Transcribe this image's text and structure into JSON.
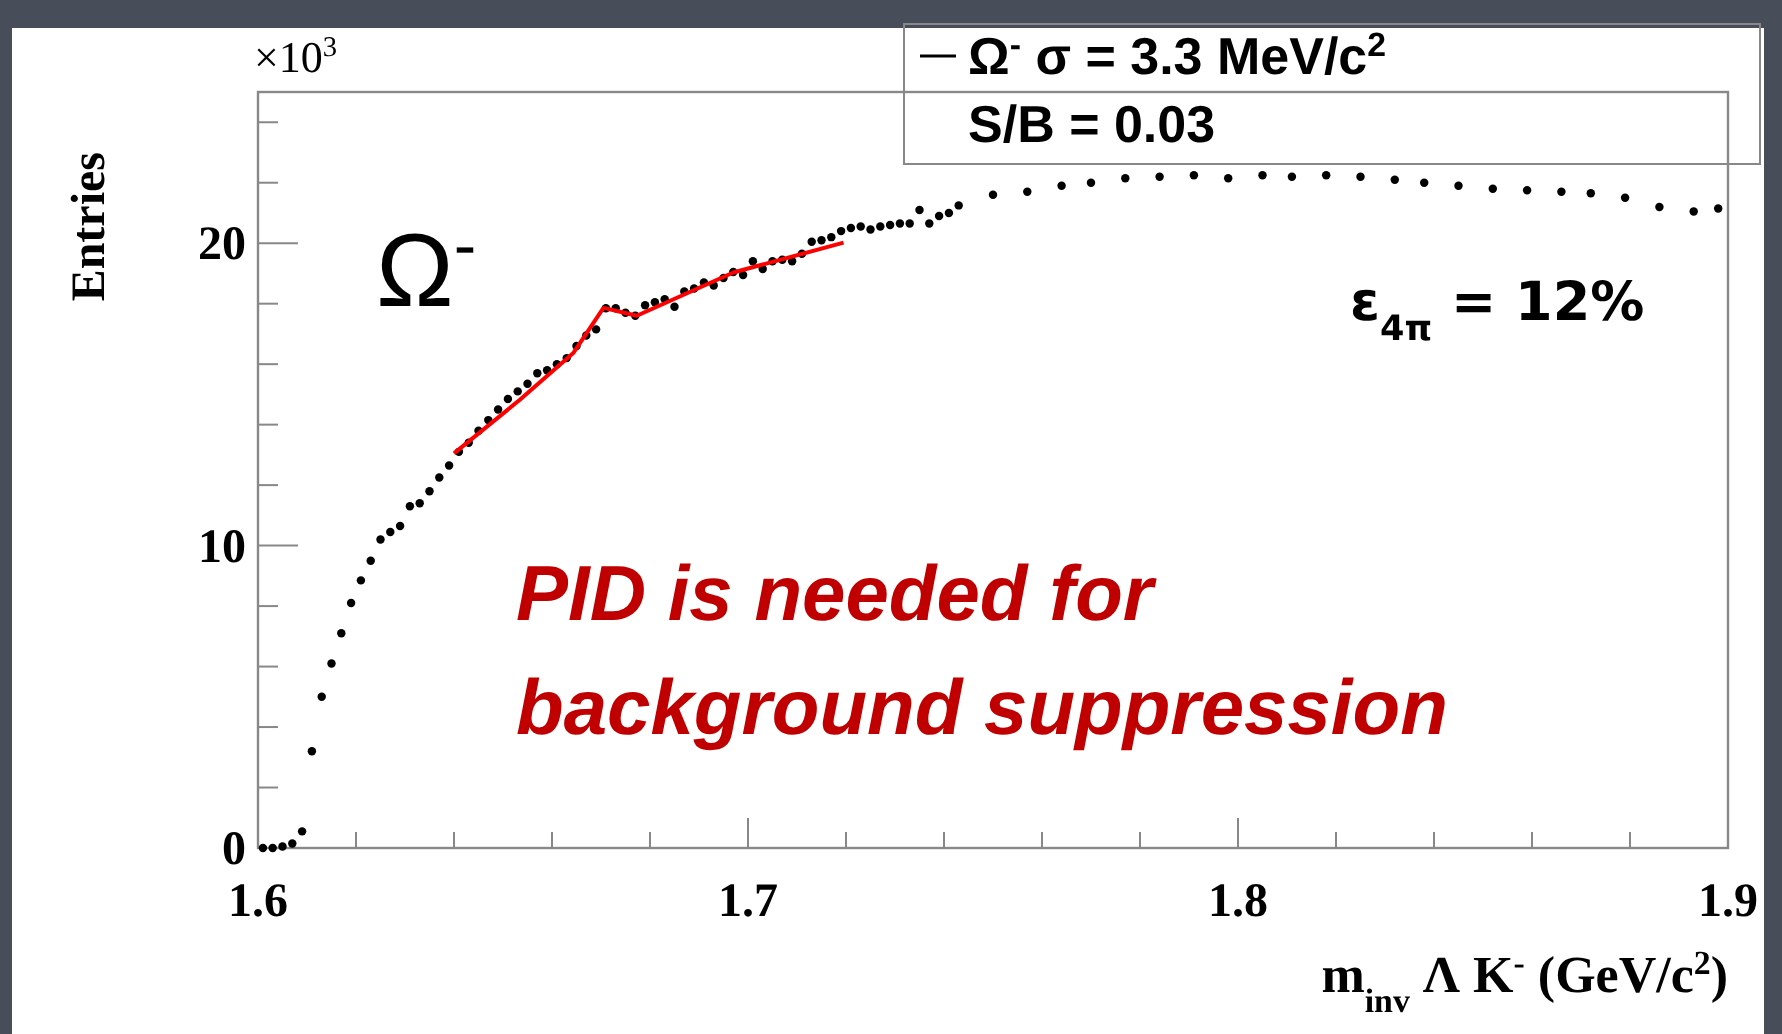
{
  "chart_data": {
    "type": "scatter",
    "xlabel": "m$_{inv}$  Λ K$^{-}$ (GeV/c$^{2}$)",
    "ylabel": "Entries",
    "xlim": [
      1.6,
      1.9
    ],
    "ylim": [
      0,
      25
    ],
    "xticks": [
      1.6,
      {
        "value": 1.62,
        "label": null
      },
      {
        "value": 1.64,
        "label": null
      },
      {
        "value": 1.66,
        "label": null
      },
      {
        "value": 1.68,
        "label": null
      },
      1.7,
      {
        "value": 1.72,
        "label": null
      },
      {
        "value": 1.74,
        "label": null
      },
      {
        "value": 1.76,
        "label": null
      },
      {
        "value": 1.78,
        "label": null
      },
      1.8,
      {
        "value": 1.82,
        "label": null
      },
      {
        "value": 1.84,
        "label": null
      },
      {
        "value": 1.86,
        "label": null
      },
      {
        "value": 1.88,
        "label": null
      },
      1.9
    ],
    "yticks": [
      0,
      {
        "value": 2,
        "label": null
      },
      {
        "value": 4,
        "label": null
      },
      {
        "value": 6,
        "label": null
      },
      {
        "value": 8,
        "label": null
      },
      10,
      {
        "value": 12,
        "label": null
      },
      {
        "value": 14,
        "label": null
      },
      {
        "value": 16,
        "label": null
      },
      {
        "value": 18,
        "label": null
      },
      20,
      {
        "value": 22,
        "label": null
      },
      {
        "value": 24,
        "label": null
      }
    ],
    "grid": false,
    "legend": "top right",
    "marker": "circle",
    "series": [
      {
        "name": "Ω$^{-}$ σ = 3.3 MeV/c$^{2}$",
        "color": "#000000",
        "x": [
          1.601,
          1.603,
          1.605,
          1.607,
          1.609,
          1.611,
          1.613,
          1.615,
          1.617,
          1.619,
          1.621,
          1.623,
          1.625,
          1.627,
          1.629,
          1.631,
          1.633,
          1.635,
          1.637,
          1.639,
          1.641,
          1.643,
          1.645,
          1.647,
          1.649,
          1.651,
          1.653,
          1.655,
          1.657,
          1.659,
          1.661,
          1.663,
          1.665,
          1.667,
          1.669,
          1.671,
          1.673,
          1.675,
          1.677,
          1.679,
          1.681,
          1.683,
          1.685,
          1.687,
          1.689,
          1.691,
          1.693,
          1.695,
          1.697,
          1.699,
          1.701,
          1.703,
          1.705,
          1.707,
          1.709,
          1.711,
          1.713,
          1.715,
          1.717,
          1.719,
          1.721,
          1.723,
          1.725,
          1.727,
          1.729,
          1.731,
          1.733,
          1.735,
          1.737,
          1.739,
          1.741,
          1.743,
          1.75,
          1.757,
          1.764,
          1.77,
          1.777,
          1.784,
          1.791,
          1.798,
          1.805,
          1.811,
          1.818,
          1.825,
          1.832,
          1.838,
          1.845,
          1.852,
          1.859,
          1.866,
          1.872,
          1.879,
          1.886,
          1.893,
          1.898
        ],
        "values": [
          0,
          0,
          0.05,
          0.15,
          0.55,
          3.2,
          5.0,
          6.1,
          7.1,
          8.1,
          8.85,
          9.5,
          10.2,
          10.45,
          10.65,
          11.3,
          11.4,
          11.8,
          12.25,
          12.65,
          13.1,
          13.4,
          13.8,
          14.15,
          14.5,
          14.85,
          15.1,
          15.35,
          15.7,
          15.8,
          16.0,
          16.2,
          16.6,
          16.95,
          17.15,
          17.85,
          17.85,
          17.7,
          17.6,
          17.95,
          18.05,
          18.15,
          17.9,
          18.4,
          18.5,
          18.7,
          18.6,
          18.85,
          19.05,
          18.95,
          19.4,
          19.15,
          19.4,
          19.45,
          19.4,
          19.65,
          20.05,
          20.1,
          20.2,
          20.4,
          20.5,
          20.55,
          20.45,
          20.55,
          20.6,
          20.65,
          20.65,
          21.1,
          20.65,
          20.9,
          21.0,
          21.25,
          21.6,
          21.7,
          21.9,
          22.0,
          22.15,
          22.2,
          22.25,
          22.15,
          22.25,
          22.2,
          22.25,
          22.2,
          22.1,
          22.0,
          21.9,
          21.8,
          21.75,
          21.7,
          21.65,
          21.5,
          21.2,
          21.05,
          21.15
        ]
      },
      {
        "type": "line",
        "marker": "none",
        "color": "#ff0000",
        "x": [
          1.64,
          1.6535,
          1.6644,
          1.6705,
          1.6773,
          1.697,
          1.7195
        ],
        "values": [
          13.05,
          14.83,
          16.38,
          17.86,
          17.6,
          19.03,
          20.02
        ]
      }
    ],
    "annotations": [
      "×10$^{3}$",
      "S/B = 0.03",
      "Ω$^{-}$",
      "ε$_{4π}$ = 12%",
      "PID is needed for background suppression"
    ]
  }
}
